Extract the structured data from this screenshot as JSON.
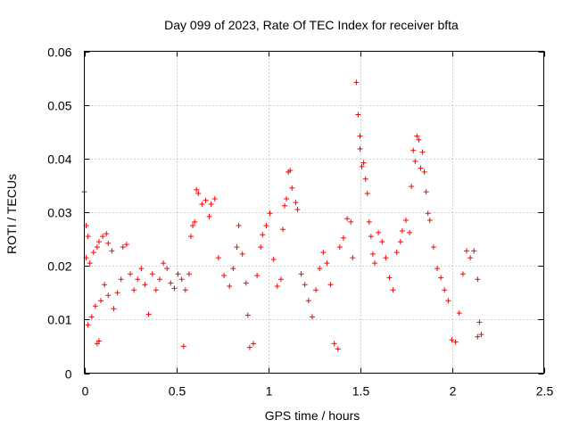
{
  "chart_data": {
    "type": "scatter",
    "title": "Day 099 of 2023, Rate Of TEC Index for receiver bfta",
    "xlabel": "GPS time / hours",
    "ylabel": "ROTI / TECUs",
    "xlim": [
      0,
      2.5
    ],
    "ylim": [
      0,
      0.06
    ],
    "xticks": [
      0,
      0.5,
      1,
      1.5,
      2,
      2.5
    ],
    "xtick_labels": [
      "0",
      "0.5",
      "1",
      "1.5",
      "2",
      "2.5"
    ],
    "yticks": [
      0,
      0.01,
      0.02,
      0.03,
      0.04,
      0.05,
      0.06
    ],
    "ytick_labels": [
      "0",
      "0.01",
      "0.02",
      "0.03",
      "0.04",
      "0.05",
      "0.06"
    ],
    "grid": true,
    "marker": "+",
    "color": "#ff0000",
    "series": [
      {
        "values": [
          [
            0.0,
            0.0338
          ],
          [
            0.01,
            0.0275
          ],
          [
            0.01,
            0.0215
          ],
          [
            0.02,
            0.0255
          ],
          [
            0.03,
            0.0205
          ],
          [
            0.05,
            0.0225
          ],
          [
            0.07,
            0.0235
          ],
          [
            0.08,
            0.0245
          ],
          [
            0.1,
            0.0255
          ],
          [
            0.12,
            0.026
          ],
          [
            0.13,
            0.0242
          ],
          [
            0.15,
            0.0228
          ],
          [
            0.07,
            0.0055
          ],
          [
            0.08,
            0.006
          ],
          [
            0.02,
            0.009
          ],
          [
            0.04,
            0.0105
          ],
          [
            0.06,
            0.0125
          ],
          [
            0.09,
            0.0135
          ],
          [
            0.11,
            0.0165
          ],
          [
            0.13,
            0.0145
          ],
          [
            0.16,
            0.012
          ],
          [
            0.18,
            0.015
          ],
          [
            0.2,
            0.0175
          ],
          [
            0.21,
            0.0235
          ],
          [
            0.23,
            0.024
          ],
          [
            0.25,
            0.0185
          ],
          [
            0.27,
            0.0155
          ],
          [
            0.29,
            0.0175
          ],
          [
            0.31,
            0.0195
          ],
          [
            0.33,
            0.0165
          ],
          [
            0.35,
            0.011
          ],
          [
            0.37,
            0.0185
          ],
          [
            0.39,
            0.0155
          ],
          [
            0.41,
            0.0175
          ],
          [
            0.43,
            0.0205
          ],
          [
            0.45,
            0.0195
          ],
          [
            0.47,
            0.0168
          ],
          [
            0.49,
            0.0158
          ],
          [
            0.51,
            0.0185
          ],
          [
            0.53,
            0.0175
          ],
          [
            0.55,
            0.0155
          ],
          [
            0.54,
            0.005
          ],
          [
            0.57,
            0.0185
          ],
          [
            0.58,
            0.0255
          ],
          [
            0.59,
            0.0275
          ],
          [
            0.6,
            0.0282
          ],
          [
            0.61,
            0.0342
          ],
          [
            0.62,
            0.0335
          ],
          [
            0.64,
            0.0315
          ],
          [
            0.66,
            0.0322
          ],
          [
            0.68,
            0.0292
          ],
          [
            0.69,
            0.0315
          ],
          [
            0.71,
            0.0325
          ],
          [
            0.73,
            0.0215
          ],
          [
            0.76,
            0.0182
          ],
          [
            0.79,
            0.0162
          ],
          [
            0.81,
            0.0195
          ],
          [
            0.83,
            0.0235
          ],
          [
            0.84,
            0.0275
          ],
          [
            0.86,
            0.0222
          ],
          [
            0.88,
            0.0168
          ],
          [
            0.89,
            0.0108
          ],
          [
            0.9,
            0.0048
          ],
          [
            0.92,
            0.0055
          ],
          [
            0.94,
            0.0182
          ],
          [
            0.96,
            0.0235
          ],
          [
            0.97,
            0.0258
          ],
          [
            0.99,
            0.0275
          ],
          [
            1.01,
            0.0298
          ],
          [
            1.03,
            0.0212
          ],
          [
            1.05,
            0.0162
          ],
          [
            1.07,
            0.0175
          ],
          [
            1.08,
            0.0268
          ],
          [
            1.09,
            0.0312
          ],
          [
            1.1,
            0.0325
          ],
          [
            1.11,
            0.0375
          ],
          [
            1.12,
            0.0378
          ],
          [
            1.13,
            0.0345
          ],
          [
            1.15,
            0.0318
          ],
          [
            1.16,
            0.0305
          ],
          [
            1.18,
            0.0185
          ],
          [
            1.2,
            0.0165
          ],
          [
            1.22,
            0.0135
          ],
          [
            1.24,
            0.0105
          ],
          [
            1.26,
            0.0155
          ],
          [
            1.28,
            0.0195
          ],
          [
            1.3,
            0.0225
          ],
          [
            1.32,
            0.0205
          ],
          [
            1.34,
            0.0165
          ],
          [
            1.36,
            0.0055
          ],
          [
            1.38,
            0.0045
          ],
          [
            1.39,
            0.0235
          ],
          [
            1.41,
            0.0252
          ],
          [
            1.43,
            0.0288
          ],
          [
            1.45,
            0.0282
          ],
          [
            1.46,
            0.0215
          ],
          [
            1.48,
            0.0542
          ],
          [
            1.49,
            0.0482
          ],
          [
            1.5,
            0.0442
          ],
          [
            1.5,
            0.0418
          ],
          [
            1.51,
            0.0385
          ],
          [
            1.52,
            0.0392
          ],
          [
            1.53,
            0.0362
          ],
          [
            1.54,
            0.0335
          ],
          [
            1.55,
            0.0282
          ],
          [
            1.56,
            0.0255
          ],
          [
            1.57,
            0.0222
          ],
          [
            1.58,
            0.0205
          ],
          [
            1.6,
            0.0262
          ],
          [
            1.62,
            0.0245
          ],
          [
            1.64,
            0.0215
          ],
          [
            1.66,
            0.0178
          ],
          [
            1.68,
            0.0155
          ],
          [
            1.7,
            0.0225
          ],
          [
            1.72,
            0.0245
          ],
          [
            1.73,
            0.0265
          ],
          [
            1.75,
            0.0285
          ],
          [
            1.77,
            0.0262
          ],
          [
            1.78,
            0.0348
          ],
          [
            1.79,
            0.0415
          ],
          [
            1.8,
            0.0395
          ],
          [
            1.81,
            0.0442
          ],
          [
            1.82,
            0.0435
          ],
          [
            1.83,
            0.0382
          ],
          [
            1.84,
            0.0412
          ],
          [
            1.85,
            0.0375
          ],
          [
            1.86,
            0.0338
          ],
          [
            1.87,
            0.0298
          ],
          [
            1.88,
            0.0285
          ],
          [
            1.9,
            0.0235
          ],
          [
            1.92,
            0.0195
          ],
          [
            1.94,
            0.0178
          ],
          [
            1.96,
            0.0155
          ],
          [
            1.98,
            0.0135
          ],
          [
            2.0,
            0.0062
          ],
          [
            2.02,
            0.0058
          ],
          [
            2.04,
            0.0112
          ],
          [
            2.06,
            0.0185
          ],
          [
            2.08,
            0.0228
          ],
          [
            2.1,
            0.0215
          ],
          [
            2.12,
            0.0228
          ],
          [
            2.14,
            0.0175
          ],
          [
            2.15,
            0.0095
          ],
          [
            2.16,
            0.0072
          ],
          [
            2.14,
            0.0068
          ]
        ]
      }
    ]
  }
}
